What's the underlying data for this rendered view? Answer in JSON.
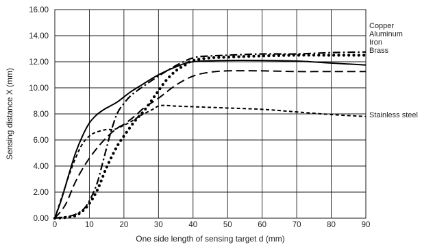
{
  "chart_data": {
    "type": "line",
    "xlabel": "One side length of sensing target d (mm)",
    "ylabel": "Sensing distance X (mm)",
    "xlim": [
      0,
      90
    ],
    "ylim": [
      0,
      16
    ],
    "x_ticks": [
      "0",
      "10",
      "20",
      "30",
      "40",
      "50",
      "60",
      "70",
      "80",
      "90"
    ],
    "y_ticks": [
      "0.00",
      "2.00",
      "4.00",
      "6.00",
      "8.00",
      "10.00",
      "12.00",
      "14.00",
      "16.00"
    ],
    "grid": true,
    "legend_placement": "right",
    "series": [
      {
        "name": "Copper",
        "style": "dash-dot",
        "points": [
          [
            0,
            0
          ],
          [
            3,
            0.1
          ],
          [
            6,
            0.3
          ],
          [
            9,
            0.9
          ],
          [
            12,
            2.5
          ],
          [
            14,
            4.4
          ],
          [
            16,
            6.4
          ],
          [
            18,
            8.0
          ],
          [
            20,
            8.8
          ],
          [
            22,
            9.4
          ],
          [
            25,
            10.0
          ],
          [
            30,
            10.9
          ],
          [
            35,
            11.7
          ],
          [
            40,
            12.3
          ],
          [
            45,
            12.45
          ],
          [
            50,
            12.5
          ],
          [
            60,
            12.6
          ],
          [
            70,
            12.6
          ],
          [
            80,
            12.7
          ],
          [
            90,
            12.75
          ]
        ]
      },
      {
        "name": "Aluminum",
        "style": "dotted",
        "points": [
          [
            0,
            0
          ],
          [
            3,
            0.05
          ],
          [
            6,
            0.2
          ],
          [
            9,
            0.8
          ],
          [
            12,
            2.0
          ],
          [
            15,
            3.9
          ],
          [
            18,
            5.5
          ],
          [
            20,
            6.3
          ],
          [
            23,
            7.4
          ],
          [
            26,
            8.3
          ],
          [
            29,
            9.4
          ],
          [
            32,
            10.5
          ],
          [
            35,
            11.3
          ],
          [
            38,
            11.8
          ],
          [
            40,
            12.1
          ],
          [
            45,
            12.3
          ],
          [
            50,
            12.35
          ],
          [
            60,
            12.45
          ],
          [
            70,
            12.5
          ],
          [
            80,
            12.5
          ],
          [
            90,
            12.5
          ]
        ]
      },
      {
        "name": "Iron",
        "style": "solid",
        "points": [
          [
            0,
            0
          ],
          [
            2,
            1.5
          ],
          [
            4,
            3.3
          ],
          [
            6,
            5.0
          ],
          [
            8,
            6.3
          ],
          [
            10,
            7.3
          ],
          [
            12,
            7.9
          ],
          [
            14,
            8.3
          ],
          [
            16,
            8.6
          ],
          [
            18,
            8.9
          ],
          [
            20,
            9.3
          ],
          [
            22,
            9.7
          ],
          [
            25,
            10.2
          ],
          [
            30,
            11.0
          ],
          [
            35,
            11.6
          ],
          [
            40,
            12.0
          ],
          [
            50,
            12.1
          ],
          [
            60,
            12.1
          ],
          [
            70,
            12.05
          ],
          [
            80,
            11.9
          ],
          [
            90,
            11.75
          ]
        ]
      },
      {
        "name": "Brass",
        "style": "long-dash",
        "points": [
          [
            0,
            0
          ],
          [
            3,
            1.0
          ],
          [
            6,
            2.8
          ],
          [
            9,
            4.2
          ],
          [
            12,
            5.3
          ],
          [
            15,
            6.2
          ],
          [
            18,
            6.9
          ],
          [
            20,
            7.2
          ],
          [
            23,
            7.8
          ],
          [
            26,
            8.5
          ],
          [
            30,
            9.2
          ],
          [
            35,
            10.2
          ],
          [
            40,
            10.9
          ],
          [
            45,
            11.2
          ],
          [
            50,
            11.3
          ],
          [
            60,
            11.3
          ],
          [
            70,
            11.25
          ],
          [
            80,
            11.25
          ],
          [
            90,
            11.25
          ]
        ]
      },
      {
        "name": "Stainless steel",
        "style": "short-dash",
        "points": [
          [
            0,
            0
          ],
          [
            2,
            1.6
          ],
          [
            4,
            3.2
          ],
          [
            6,
            4.6
          ],
          [
            8,
            5.7
          ],
          [
            10,
            6.3
          ],
          [
            12,
            6.6
          ],
          [
            15,
            6.8
          ],
          [
            17,
            6.8
          ],
          [
            19,
            7.0
          ],
          [
            22,
            7.4
          ],
          [
            25,
            7.9
          ],
          [
            28,
            8.3
          ],
          [
            30,
            8.6
          ],
          [
            32,
            8.65
          ],
          [
            35,
            8.6
          ],
          [
            40,
            8.55
          ],
          [
            50,
            8.45
          ],
          [
            60,
            8.35
          ],
          [
            70,
            8.15
          ],
          [
            80,
            7.95
          ],
          [
            90,
            7.8
          ]
        ]
      }
    ]
  }
}
